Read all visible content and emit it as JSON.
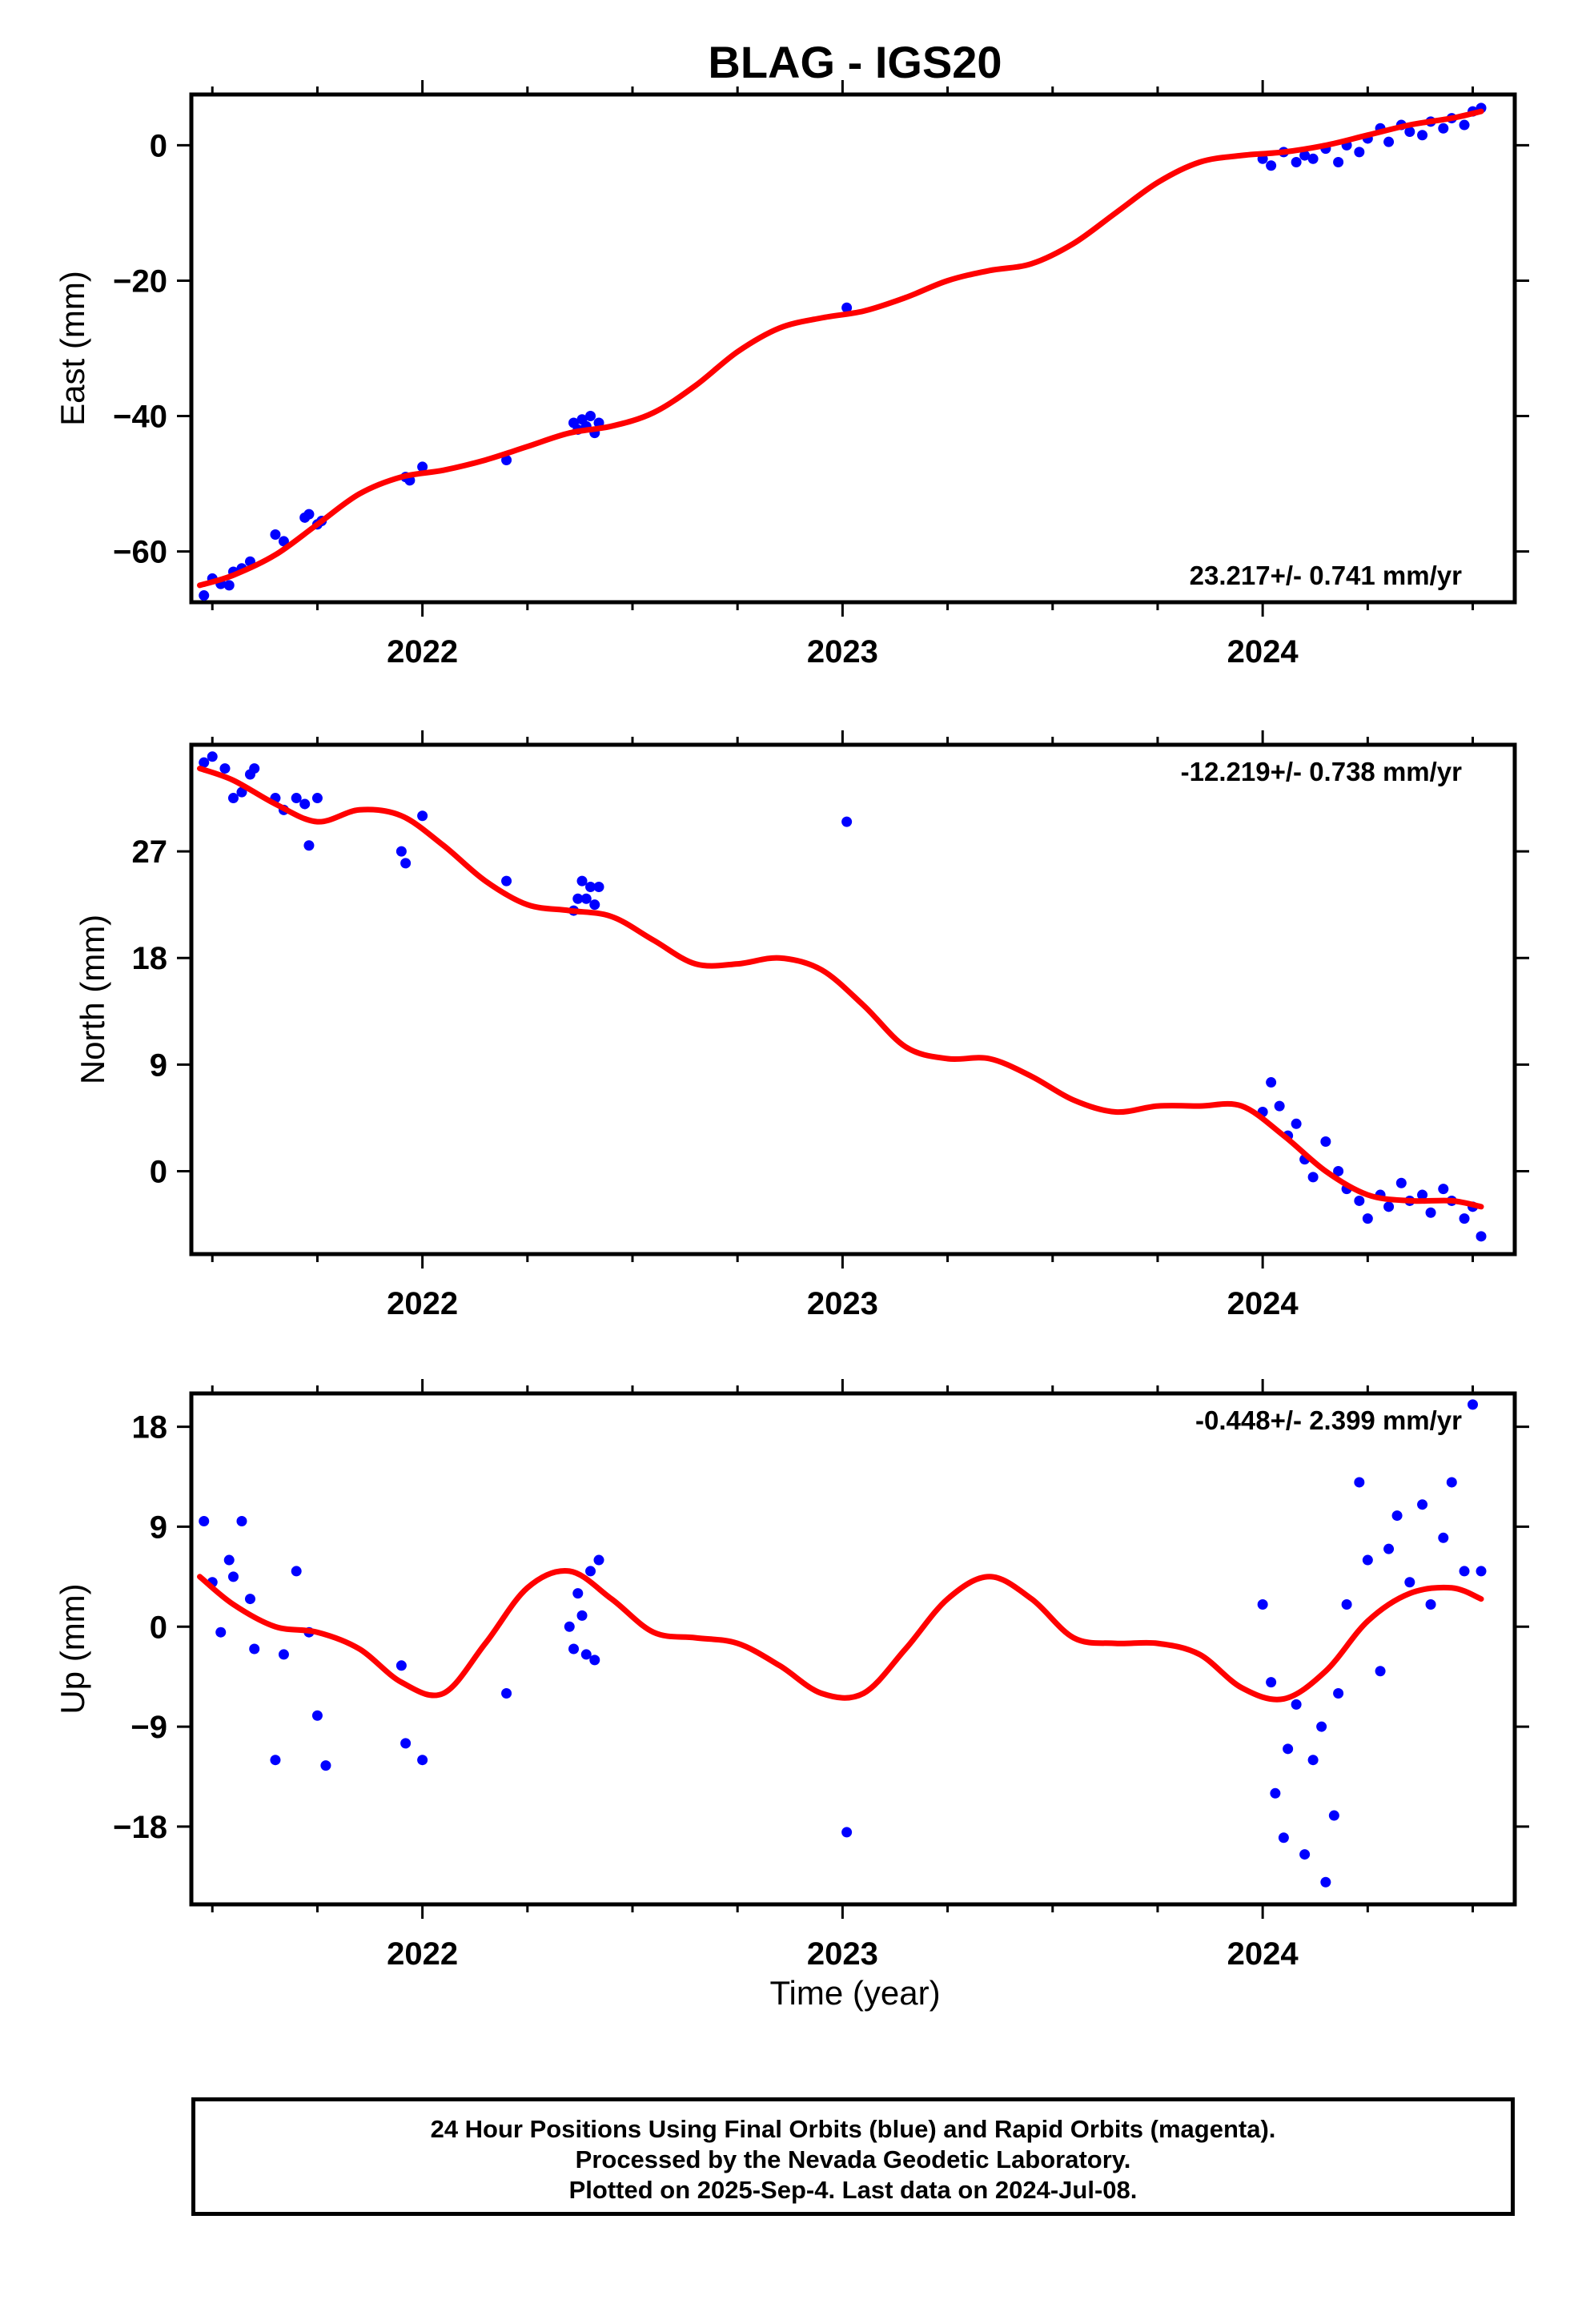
{
  "title": "BLAG - IGS20",
  "xlabel": "Time (year)",
  "footer": [
    "24 Hour Positions Using Final Orbits (blue) and Rapid Orbits (magenta).",
    "Processed by the Nevada Geodetic Laboratory.",
    "Plotted on 2025-Sep-4. Last data on 2024-Jul-08."
  ],
  "colors": {
    "points": "#0000ff",
    "fit": "#ff0000",
    "frame": "#000000"
  },
  "chart_data": [
    {
      "type": "scatter",
      "ylabel": "East (mm)",
      "rate": "23.217+/- 0.741 mm/yr",
      "xlim": [
        2021.45,
        2024.6
      ],
      "ylim": [
        -67.5,
        7.5
      ],
      "yticks": [
        -60,
        -40,
        -20,
        0
      ],
      "xticks": [
        2022,
        2023,
        2024
      ],
      "grid": false,
      "points": {
        "x": [
          2021.48,
          2021.5,
          2021.52,
          2021.54,
          2021.55,
          2021.57,
          2021.59,
          2021.65,
          2021.67,
          2021.72,
          2021.73,
          2021.75,
          2021.76,
          2021.96,
          2021.97,
          2022.0,
          2022.2,
          2022.36,
          2022.37,
          2022.38,
          2022.39,
          2022.4,
          2022.41,
          2022.42,
          2023.01,
          2024.0,
          2024.02,
          2024.05,
          2024.08,
          2024.1,
          2024.12,
          2024.15,
          2024.18,
          2024.2,
          2024.23,
          2024.25,
          2024.28,
          2024.3,
          2024.33,
          2024.35,
          2024.38,
          2024.4,
          2024.43,
          2024.45,
          2024.48,
          2024.5,
          2024.52
        ],
        "y": [
          -66.5,
          -64,
          -64.8,
          -65,
          -63,
          -62.5,
          -61.5,
          -57.5,
          -58.5,
          -55,
          -54.5,
          -56,
          -55.5,
          -49,
          -49.5,
          -47.5,
          -46.5,
          -41,
          -42,
          -40.5,
          -41.5,
          -40,
          -42.5,
          -41,
          -24,
          -2,
          -3,
          -1,
          -2.5,
          -1.5,
          -2,
          -0.5,
          -2.5,
          0,
          -1,
          1,
          2.5,
          0.5,
          3,
          2,
          1.5,
          3.5,
          2.5,
          4,
          3,
          5,
          5.5
        ]
      },
      "fit": {
        "x": [
          2021.47,
          2021.55,
          2021.65,
          2021.75,
          2021.85,
          2021.95,
          2022.05,
          2022.15,
          2022.25,
          2022.35,
          2022.45,
          2022.55,
          2022.65,
          2022.75,
          2022.85,
          2022.95,
          2023.05,
          2023.15,
          2023.25,
          2023.35,
          2023.45,
          2023.55,
          2023.65,
          2023.75,
          2023.85,
          2023.95,
          2024.05,
          2024.15,
          2024.25,
          2024.35,
          2024.45,
          2024.52
        ],
        "y": [
          -65,
          -63.5,
          -60.5,
          -56,
          -51.5,
          -49,
          -48,
          -46.5,
          -44.5,
          -42.5,
          -41.5,
          -39.5,
          -35.5,
          -30.5,
          -27,
          -25.5,
          -24.5,
          -22.5,
          -20,
          -18.5,
          -17.5,
          -14.5,
          -10,
          -5.5,
          -2.5,
          -1.5,
          -1,
          0,
          1.5,
          3,
          4,
          5
        ]
      }
    },
    {
      "type": "scatter",
      "ylabel": "North (mm)",
      "rate": "-12.219+/- 0.738 mm/yr",
      "xlim": [
        2021.45,
        2024.6
      ],
      "ylim": [
        -7,
        36
      ],
      "yticks": [
        0,
        9,
        18,
        27
      ],
      "xticks": [
        2022,
        2023,
        2024
      ],
      "grid": false,
      "points": {
        "x": [
          2021.48,
          2021.5,
          2021.53,
          2021.55,
          2021.57,
          2021.59,
          2021.6,
          2021.65,
          2021.67,
          2021.7,
          2021.72,
          2021.73,
          2021.75,
          2021.95,
          2021.96,
          2022.0,
          2022.2,
          2022.36,
          2022.37,
          2022.38,
          2022.39,
          2022.4,
          2022.41,
          2022.42,
          2023.01,
          2024.0,
          2024.02,
          2024.04,
          2024.06,
          2024.08,
          2024.1,
          2024.12,
          2024.15,
          2024.18,
          2024.2,
          2024.23,
          2024.25,
          2024.28,
          2024.3,
          2024.33,
          2024.35,
          2024.38,
          2024.4,
          2024.43,
          2024.45,
          2024.48,
          2024.5,
          2024.52
        ],
        "y": [
          34.5,
          35,
          34,
          31.5,
          32,
          33.5,
          34,
          31.5,
          30.5,
          31.5,
          31,
          27.5,
          31.5,
          27,
          26,
          30,
          24.5,
          22,
          23,
          24.5,
          23,
          24,
          22.5,
          24,
          29.5,
          5,
          7.5,
          5.5,
          3,
          4,
          1,
          -0.5,
          2.5,
          0,
          -1.5,
          -2.5,
          -4,
          -2,
          -3,
          -1,
          -2.5,
          -2,
          -3.5,
          -1.5,
          -2.5,
          -4,
          -3,
          -5.5
        ]
      },
      "fit": {
        "x": [
          2021.47,
          2021.55,
          2021.65,
          2021.75,
          2021.85,
          2021.95,
          2022.05,
          2022.15,
          2022.25,
          2022.35,
          2022.45,
          2022.55,
          2022.65,
          2022.75,
          2022.85,
          2022.95,
          2023.05,
          2023.15,
          2023.25,
          2023.35,
          2023.45,
          2023.55,
          2023.65,
          2023.75,
          2023.85,
          2023.95,
          2024.05,
          2024.15,
          2024.25,
          2024.35,
          2024.45,
          2024.52
        ],
        "y": [
          34,
          33,
          31,
          29.5,
          30.5,
          30,
          27.5,
          24.5,
          22.5,
          22,
          21.5,
          19.5,
          17.5,
          17.5,
          18,
          17,
          14,
          10.5,
          9.5,
          9.5,
          8,
          6,
          5,
          5.5,
          5.5,
          5.5,
          3,
          0,
          -2,
          -2.5,
          -2.5,
          -3
        ]
      }
    },
    {
      "type": "scatter",
      "ylabel": "Up (mm)",
      "rate": "-0.448+/- 2.399 mm/yr",
      "xlim": [
        2021.45,
        2024.6
      ],
      "ylim": [
        -25,
        21
      ],
      "yticks": [
        -18,
        -9,
        0,
        9,
        18
      ],
      "xticks": [
        2022,
        2023,
        2024
      ],
      "grid": false,
      "points": {
        "x": [
          2021.48,
          2021.5,
          2021.52,
          2021.54,
          2021.55,
          2021.57,
          2021.59,
          2021.6,
          2021.65,
          2021.67,
          2021.7,
          2021.73,
          2021.75,
          2021.77,
          2021.95,
          2021.96,
          2022.0,
          2022.2,
          2022.35,
          2022.36,
          2022.37,
          2022.38,
          2022.39,
          2022.4,
          2022.41,
          2022.42,
          2023.01,
          2024.0,
          2024.02,
          2024.03,
          2024.05,
          2024.06,
          2024.08,
          2024.1,
          2024.12,
          2024.14,
          2024.15,
          2024.17,
          2024.18,
          2024.2,
          2024.23,
          2024.25,
          2024.28,
          2024.3,
          2024.32,
          2024.35,
          2024.38,
          2024.4,
          2024.43,
          2024.45,
          2024.48,
          2024.5,
          2024.52
        ],
        "y": [
          9.5,
          4,
          -0.5,
          6,
          4.5,
          9.5,
          2.5,
          -2,
          -12,
          -2.5,
          5,
          -0.5,
          -8,
          -12.5,
          -3.5,
          -10.5,
          -12,
          -6,
          0,
          -2,
          3,
          1,
          -2.5,
          5,
          -3,
          6,
          -18.5,
          2,
          -5,
          -15,
          -19,
          -11,
          -7,
          -20.5,
          -12,
          -9,
          -23,
          -17,
          -6,
          2,
          13,
          6,
          -4,
          7,
          10,
          4,
          11,
          2,
          8,
          13,
          5,
          20,
          5
        ]
      },
      "fit": {
        "x": [
          2021.47,
          2021.55,
          2021.65,
          2021.75,
          2021.85,
          2021.95,
          2022.05,
          2022.15,
          2022.25,
          2022.35,
          2022.45,
          2022.55,
          2022.65,
          2022.75,
          2022.85,
          2022.95,
          2023.05,
          2023.15,
          2023.25,
          2023.35,
          2023.45,
          2023.55,
          2023.65,
          2023.75,
          2023.85,
          2023.95,
          2024.05,
          2024.15,
          2024.25,
          2024.35,
          2024.45,
          2024.52
        ],
        "y": [
          4.5,
          2,
          0,
          -0.5,
          -2,
          -5,
          -6,
          -1.5,
          3.5,
          5,
          2.5,
          -0.5,
          -1,
          -1.5,
          -3.5,
          -6,
          -6,
          -2,
          2.5,
          4.5,
          2.5,
          -1,
          -1.5,
          -1.5,
          -2.5,
          -5.5,
          -6.5,
          -4,
          0.5,
          3,
          3.5,
          2.5
        ]
      }
    }
  ]
}
